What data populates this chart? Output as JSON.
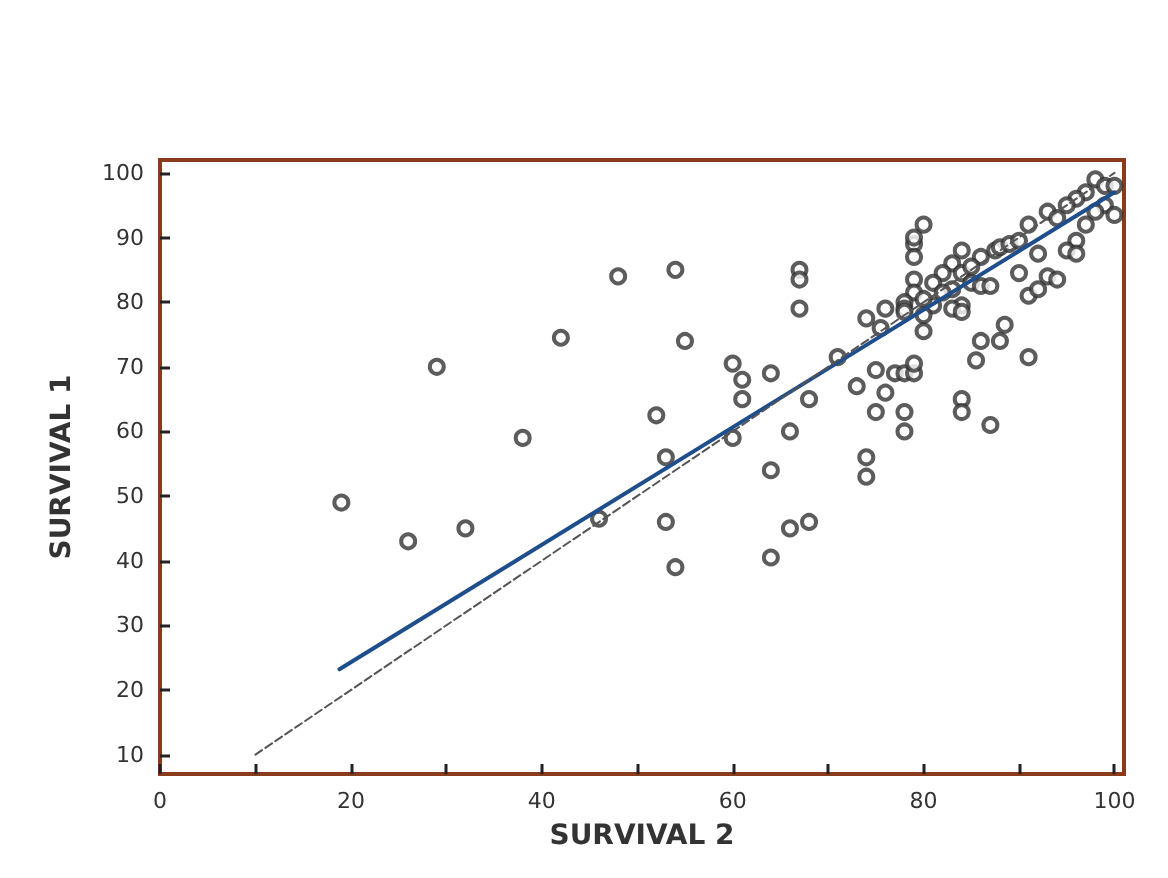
{
  "chart_data": {
    "type": "scatter",
    "xlabel": "SURVIVAL 2",
    "ylabel": "SURVIVAL 1",
    "marker": "circle",
    "grid": false,
    "xlim": [
      0,
      101
    ],
    "ylim": [
      7,
      102
    ],
    "xticks": [
      0,
      {
        "value": 10,
        "label": null
      },
      20,
      {
        "value": 30,
        "label": null
      },
      40,
      {
        "value": 50,
        "label": null
      },
      60,
      {
        "value": 70,
        "label": null
      },
      80,
      {
        "value": 90,
        "label": null
      },
      100
    ],
    "yticks": [
      10,
      20,
      30,
      40,
      50,
      60,
      70,
      80,
      90,
      100
    ],
    "series": [
      {
        "color": "#333333",
        "x": [
          19,
          26,
          29,
          32,
          38,
          48,
          54,
          42,
          55,
          60,
          61,
          61,
          64,
          68,
          67,
          67,
          67,
          52,
          53,
          60,
          66,
          64,
          46,
          53,
          54,
          66,
          68,
          64,
          79,
          79,
          84,
          86,
          87.5,
          88,
          89,
          90,
          96,
          95,
          92,
          83,
          82,
          81,
          79,
          79,
          78,
          84,
          85,
          85,
          86,
          83,
          82,
          81,
          84,
          83,
          84,
          80,
          80,
          78,
          78,
          76,
          74,
          75.5,
          87,
          90,
          91,
          92,
          93,
          94,
          96,
          88.5,
          88,
          86,
          85.5,
          91,
          80,
          71,
          75,
          77,
          78,
          79,
          79,
          76,
          73,
          75,
          78,
          78,
          84,
          84,
          87,
          74,
          74,
          98,
          99,
          97,
          100,
          96,
          99,
          98,
          95,
          93,
          100,
          97,
          94,
          91,
          80,
          79
        ],
        "values": [
          49,
          43,
          70,
          45,
          59,
          84,
          85,
          74.5,
          74,
          70.5,
          68,
          65,
          69,
          65,
          85,
          83.5,
          79,
          62.5,
          56,
          59,
          60,
          54,
          46.5,
          46,
          39,
          45,
          46,
          40.5,
          89,
          87,
          88,
          87,
          88,
          88.5,
          89,
          89.5,
          89.5,
          88,
          87.5,
          86,
          84.5,
          83,
          83.5,
          81.5,
          80,
          84.5,
          83,
          85.5,
          82.5,
          82,
          81.5,
          79.5,
          79.5,
          79,
          78.5,
          80.5,
          78,
          79,
          78.5,
          79,
          77.5,
          76,
          82.5,
          84.5,
          81,
          82,
          84,
          83.5,
          87.5,
          76.5,
          74,
          74,
          71,
          71.5,
          75.5,
          71.5,
          69.5,
          69,
          69,
          69,
          70.5,
          66,
          67,
          63,
          63,
          60,
          65,
          63,
          61,
          56,
          53,
          99,
          98,
          97,
          98,
          96,
          95,
          94,
          95,
          94,
          93.5,
          92,
          93,
          92,
          92,
          90
        ]
      },
      {
        "type": "line",
        "color": "#1f4e8c",
        "line_style": "solid",
        "marker": "none",
        "x": [
          18.8,
          100
        ],
        "values": [
          23.2,
          97
        ]
      },
      {
        "type": "line",
        "color": "#555555",
        "line_style": "dashed",
        "marker": "none",
        "x": [
          10,
          100
        ],
        "values": [
          10,
          100
        ]
      }
    ]
  }
}
